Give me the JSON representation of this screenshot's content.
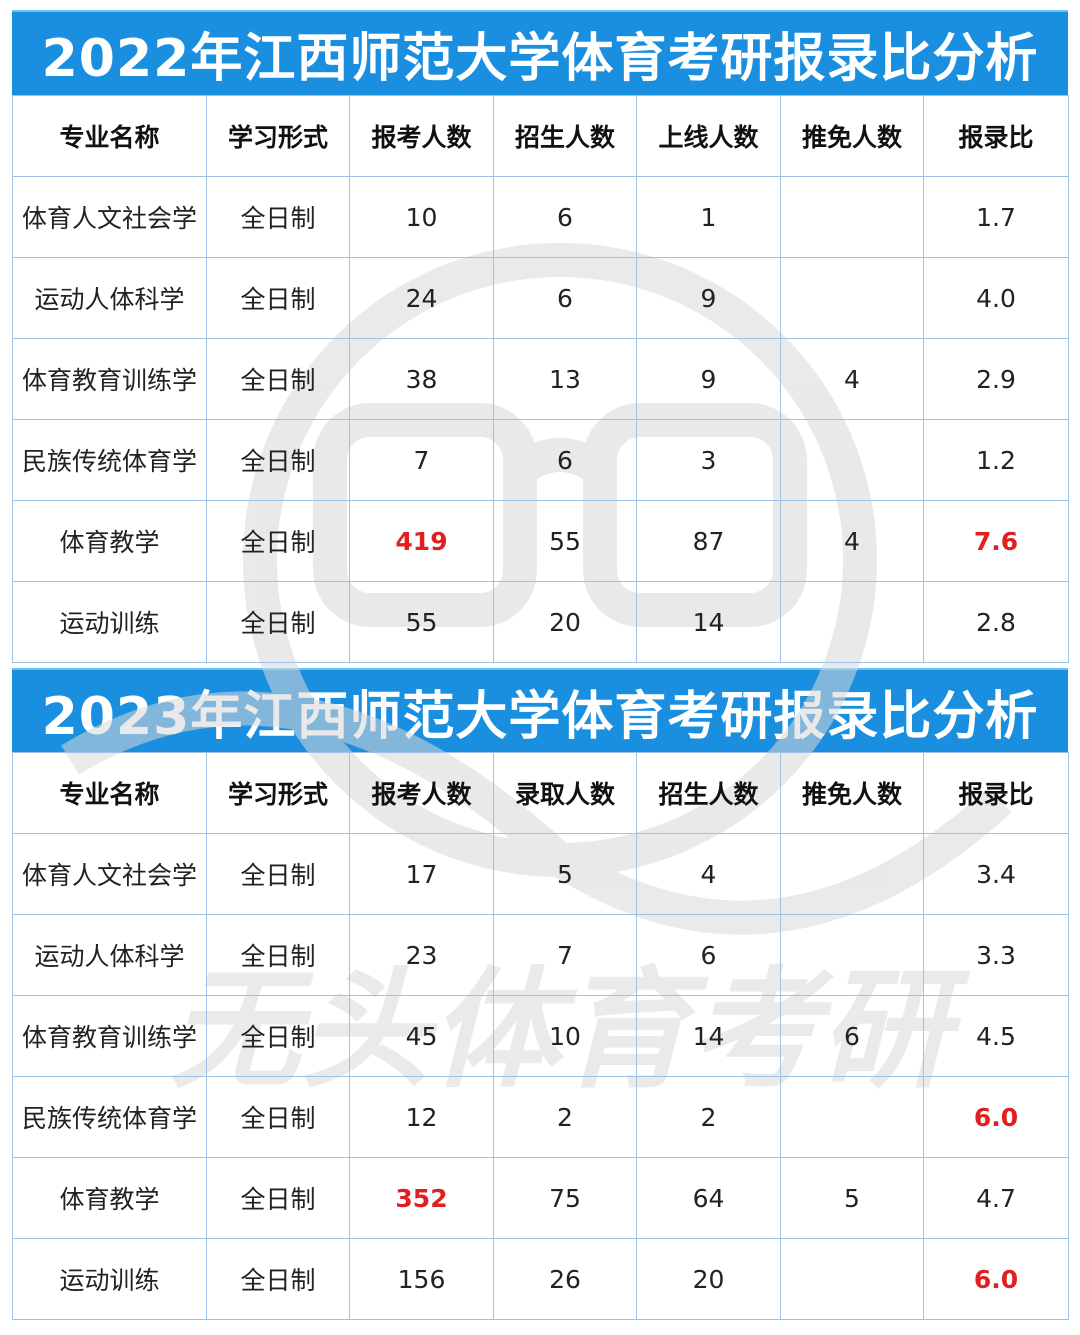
{
  "watermark_text": "无头体育考研",
  "accent_color": "#1a8fe0",
  "highlight_color": "#e02020",
  "tables": [
    {
      "title": "2022年江西师范大学体育考研报录比分析",
      "headers": [
        "专业名称",
        "学习形式",
        "报考人数",
        "招生人数",
        "上线人数",
        "推免人数",
        "报录比"
      ],
      "rows": [
        [
          "体育人文社会学",
          "全日制",
          "10",
          "6",
          "1",
          "",
          "1.7"
        ],
        [
          "运动人体科学",
          "全日制",
          "24",
          "6",
          "9",
          "",
          "4.0"
        ],
        [
          "体育教育训练学",
          "全日制",
          "38",
          "13",
          "9",
          "4",
          "2.9"
        ],
        [
          "民族传统体育学",
          "全日制",
          "7",
          "6",
          "3",
          "",
          "1.2"
        ],
        [
          "体育教学",
          "全日制",
          "419",
          "55",
          "87",
          "4",
          "7.6"
        ],
        [
          "运动训练",
          "全日制",
          "55",
          "20",
          "14",
          "",
          "2.8"
        ]
      ],
      "highlights": [
        [
          4,
          2
        ],
        [
          4,
          6
        ]
      ]
    },
    {
      "title": "2023年江西师范大学体育考研报录比分析",
      "headers": [
        "专业名称",
        "学习形式",
        "报考人数",
        "录取人数",
        "招生人数",
        "推免人数",
        "报录比"
      ],
      "rows": [
        [
          "体育人文社会学",
          "全日制",
          "17",
          "5",
          "4",
          "",
          "3.4"
        ],
        [
          "运动人体科学",
          "全日制",
          "23",
          "7",
          "6",
          "",
          "3.3"
        ],
        [
          "体育教育训练学",
          "全日制",
          "45",
          "10",
          "14",
          "6",
          "4.5"
        ],
        [
          "民族传统体育学",
          "全日制",
          "12",
          "2",
          "2",
          "",
          "6.0"
        ],
        [
          "体育教学",
          "全日制",
          "352",
          "75",
          "64",
          "5",
          "4.7"
        ],
        [
          "运动训练",
          "全日制",
          "156",
          "26",
          "20",
          "",
          "6.0"
        ]
      ],
      "highlights": [
        [
          3,
          6
        ],
        [
          4,
          2
        ],
        [
          5,
          6
        ]
      ]
    }
  ]
}
